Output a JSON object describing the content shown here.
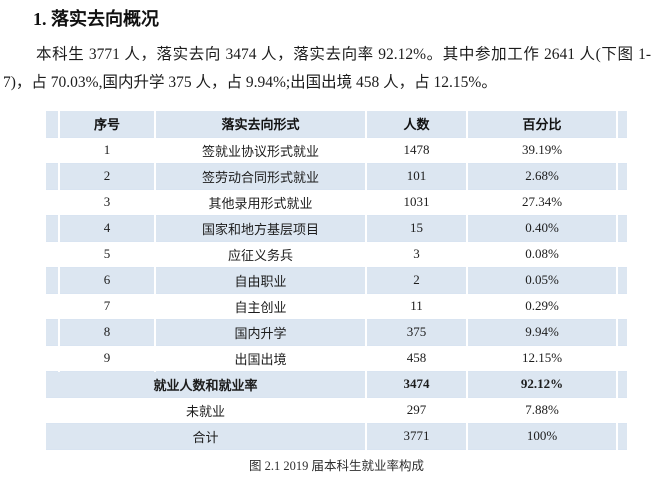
{
  "page": {
    "heading": "1. 落实去向概况",
    "paragraph": "本科生 3771 人，落实去向 3474 人，落实去向率 92.12%。其中参加工作 2641 人(下图 1-7)，占 70.03%,国内升学 375 人，占 9.94%;出国出境 458 人，占 12.15%。",
    "caption": "图 2.1  2019 届本科生就业率构成"
  },
  "table": {
    "headers": [
      "序号",
      "落实去向形式",
      "人数",
      "百分比"
    ],
    "rows": [
      {
        "no": "1",
        "form": "签就业协议形式就业",
        "count": "1478",
        "pct": "39.19%"
      },
      {
        "no": "2",
        "form": "签劳动合同形式就业",
        "count": "101",
        "pct": "2.68%"
      },
      {
        "no": "3",
        "form": "其他录用形式就业",
        "count": "1031",
        "pct": "27.34%"
      },
      {
        "no": "4",
        "form": "国家和地方基层项目",
        "count": "15",
        "pct": "0.40%"
      },
      {
        "no": "5",
        "form": "应征义务兵",
        "count": "3",
        "pct": "0.08%"
      },
      {
        "no": "6",
        "form": "自由职业",
        "count": "2",
        "pct": "0.05%"
      },
      {
        "no": "7",
        "form": "自主创业",
        "count": "11",
        "pct": "0.29%"
      },
      {
        "no": "8",
        "form": "国内升学",
        "count": "375",
        "pct": "9.94%"
      },
      {
        "no": "9",
        "form": "出国出境",
        "count": "458",
        "pct": "12.15%"
      }
    ],
    "summary_rows": [
      {
        "label": "就业人数和就业率",
        "count": "3474",
        "pct": "92.12%",
        "bold": true
      },
      {
        "label": "未就业",
        "count": "297",
        "pct": "7.88%",
        "bold": false
      },
      {
        "label": "合计",
        "count": "3771",
        "pct": "100%",
        "bold": false
      }
    ],
    "colors": {
      "band_blue": "#dce6f1",
      "separator_white": "#ffffff",
      "row_line": "#aac3e0",
      "text": "#1c1c1c"
    }
  }
}
